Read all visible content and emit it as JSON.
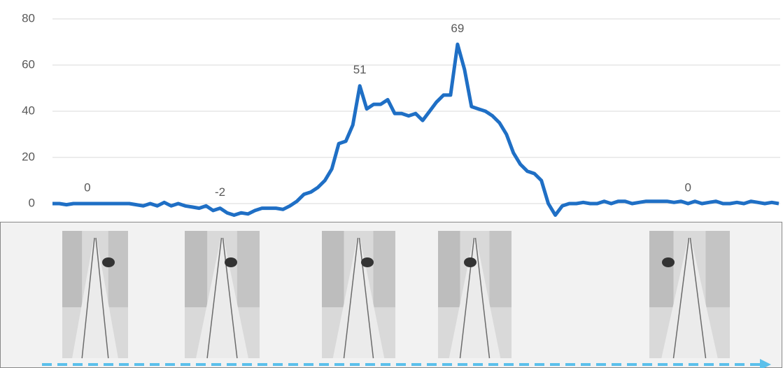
{
  "chart_data": {
    "type": "line",
    "color": "#1f6fc5",
    "grid": true,
    "ylim": [
      -8,
      82
    ],
    "yticks": [
      0,
      20,
      40,
      60,
      80
    ],
    "values": [
      0,
      0,
      -0.5,
      0,
      0,
      0,
      0,
      0,
      0,
      0,
      0,
      0,
      -0.5,
      -1,
      0,
      -1,
      0.5,
      -1,
      0,
      -1,
      -1.5,
      -2,
      -1,
      -3,
      -2,
      -4,
      -5,
      -4,
      -4.5,
      -3,
      -2,
      -2,
      -2,
      -2.5,
      -1,
      1,
      4,
      5,
      7,
      10,
      15,
      26,
      27,
      34,
      51,
      41,
      43,
      43,
      45,
      39,
      39,
      38,
      39,
      36,
      40,
      44,
      47,
      47,
      69,
      58,
      42,
      41,
      40,
      38,
      35,
      30,
      22,
      17,
      14,
      13,
      10,
      0,
      -5,
      -1,
      0,
      0,
      0.5,
      0,
      0,
      1,
      0,
      1,
      1,
      0,
      0.5,
      1,
      1,
      1,
      1,
      0.5,
      1,
      0,
      1,
      0,
      0.5,
      1,
      0,
      0,
      0.5,
      0,
      1,
      0.5,
      0,
      0.5,
      0
    ],
    "value_labels": [
      null,
      null,
      null,
      null,
      null,
      "0",
      null,
      null,
      null,
      null,
      null,
      null,
      null,
      null,
      null,
      null,
      null,
      null,
      null,
      null,
      null,
      null,
      null,
      null,
      "-2",
      null,
      null,
      null,
      null,
      null,
      null,
      null,
      null,
      null,
      null,
      null,
      null,
      null,
      null,
      null,
      null,
      null,
      null,
      null,
      "51",
      null,
      null,
      null,
      null,
      null,
      null,
      null,
      null,
      null,
      null,
      null,
      null,
      null,
      "69",
      null,
      null,
      null,
      null,
      null,
      null,
      null,
      null,
      null,
      null,
      null,
      null,
      null,
      null,
      null,
      null,
      null,
      null,
      null,
      null,
      null,
      null,
      null,
      null,
      null,
      null,
      null,
      null,
      null,
      null,
      null,
      null,
      "0",
      null,
      null,
      null,
      null,
      null,
      null,
      null,
      null,
      null,
      null,
      null,
      null,
      null
    ]
  }
}
